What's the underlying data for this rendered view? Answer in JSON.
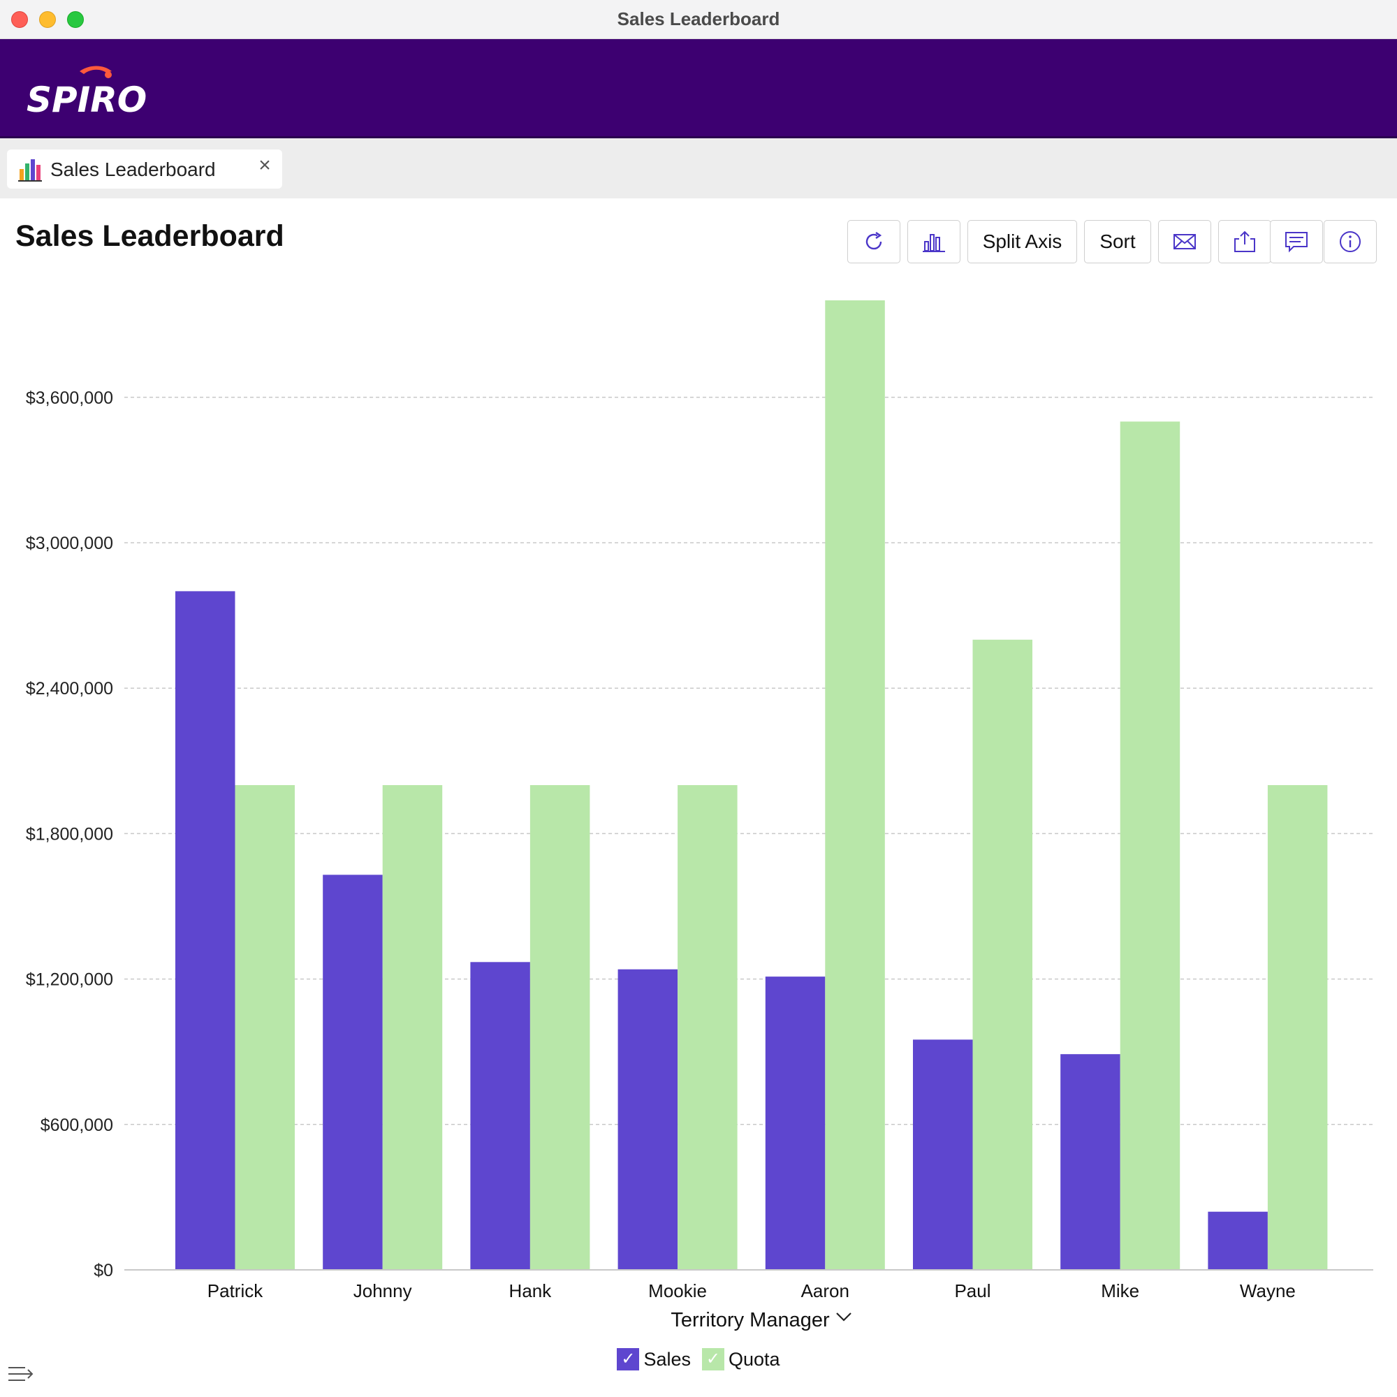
{
  "window": {
    "title": "Sales Leaderboard"
  },
  "brand": {
    "logo_text": "SPIRO"
  },
  "tab": {
    "label": "Sales Leaderboard",
    "close_glyph": "×"
  },
  "page": {
    "title": "Sales Leaderboard"
  },
  "toolbar": {
    "refresh_icon": "refresh-icon",
    "chart_type_icon": "bar-chart-icon",
    "split_axis_label": "Split Axis",
    "sort_label": "Sort",
    "email_icon": "envelope-icon",
    "export_icon": "share-icon",
    "comment_icon": "comment-icon",
    "info_icon": "info-icon"
  },
  "legend": {
    "check": "✓"
  },
  "colors": {
    "sales": "#5e46cf",
    "quota": "#b8e7a9",
    "brand_bar": "#3d0071",
    "logo_accent": "#ff5a3c",
    "icon": "#4a35c8"
  },
  "chart_data": {
    "type": "bar",
    "title": "",
    "xlabel": "Territory Manager",
    "ylabel": "",
    "ylim": [
      0,
      4000000
    ],
    "yticks": [
      0,
      600000,
      1200000,
      1800000,
      2400000,
      3000000,
      3600000
    ],
    "ytick_labels": [
      "$0",
      "$600,000",
      "$1,200,000",
      "$1,800,000",
      "$2,400,000",
      "$3,000,000",
      "$3,600,000"
    ],
    "grid": true,
    "legend_position": "bottom-center",
    "categories": [
      "Patrick",
      "Johnny",
      "Hank",
      "Mookie",
      "Aaron",
      "Paul",
      "Mike",
      "Wayne"
    ],
    "series": [
      {
        "name": "Sales",
        "color": "#5e46cf",
        "values": [
          2800000,
          1630000,
          1270000,
          1240000,
          1210000,
          950000,
          890000,
          240000
        ]
      },
      {
        "name": "Quota",
        "color": "#b8e7a9",
        "values": [
          2000000,
          2000000,
          2000000,
          2000000,
          4000000,
          2600000,
          3500000,
          2000000
        ]
      }
    ]
  }
}
